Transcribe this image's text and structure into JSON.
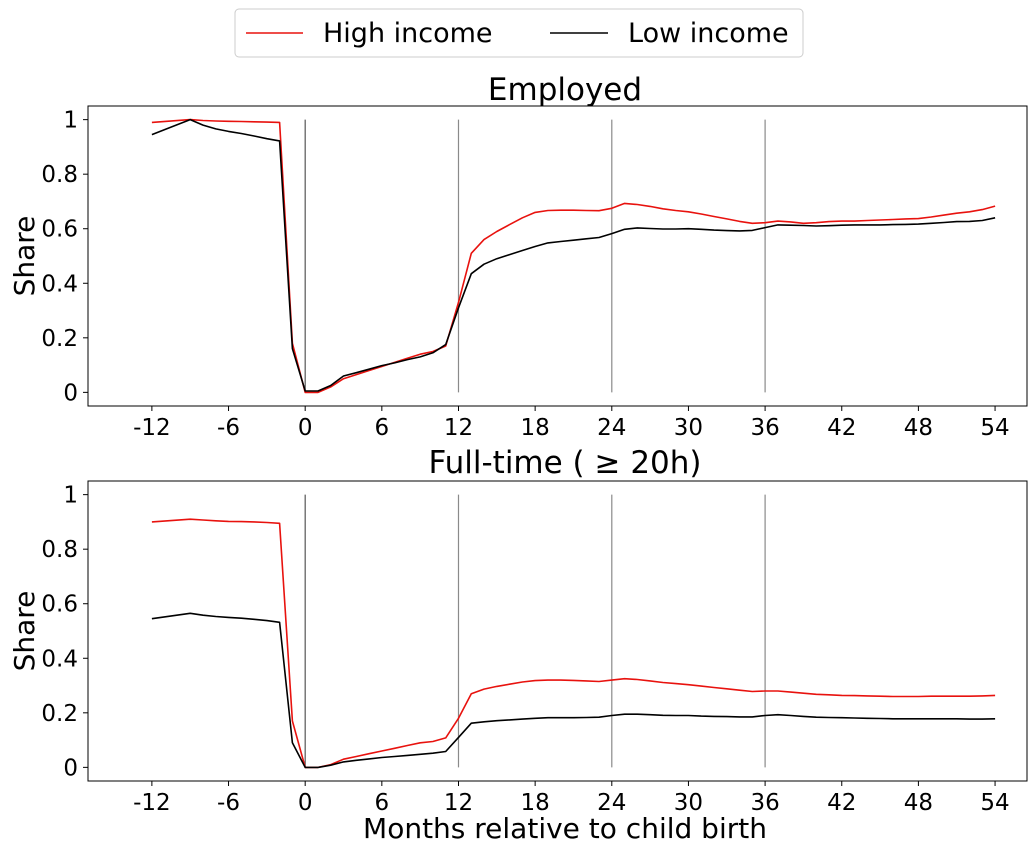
{
  "legend": {
    "placement": "top-center",
    "entries": [
      {
        "label": "High income",
        "color": "#e8120e"
      },
      {
        "label": "Low income",
        "color": "#000000"
      }
    ]
  },
  "chart_data": [
    {
      "type": "line",
      "title": "Employed",
      "xlabel": "",
      "ylabel": "Share",
      "xlim": [
        -17,
        56.5
      ],
      "ylim": [
        -0.05,
        1.05
      ],
      "xticks": [
        -12,
        -6,
        0,
        6,
        12,
        18,
        24,
        30,
        36,
        42,
        48,
        54
      ],
      "xtick_labels": [
        "-12",
        "-6",
        "0",
        "6",
        "12",
        "18",
        "24",
        "30",
        "36",
        "42",
        "48",
        "54"
      ],
      "yticks": [
        0,
        0.2,
        0.4,
        0.6,
        0.8,
        1
      ],
      "ytick_labels": [
        "0",
        "0.2",
        "0.4",
        "0.6",
        "0.8",
        "1"
      ],
      "reference_lines_x": [
        0,
        12,
        24,
        36
      ],
      "grid": false,
      "series": [
        {
          "name": "High income",
          "color": "#e8120e",
          "x": [
            -12,
            -9,
            -8,
            -7,
            -6,
            -5,
            -4,
            -3,
            -2,
            -1,
            0,
            1,
            2,
            3,
            4,
            5,
            6,
            7,
            8,
            9,
            10,
            11,
            12,
            13,
            14,
            15,
            16,
            17,
            18,
            19,
            20,
            21,
            22,
            23,
            24,
            25,
            26,
            27,
            28,
            29,
            30,
            31,
            32,
            33,
            34,
            35,
            36,
            37,
            38,
            39,
            40,
            41,
            42,
            43,
            44,
            45,
            46,
            47,
            48,
            49,
            50,
            51,
            52,
            53,
            54
          ],
          "y": [
            0.99,
            1.0,
            0.997,
            0.995,
            0.994,
            0.993,
            0.992,
            0.991,
            0.99,
            0.18,
            0.0,
            0.0,
            0.02,
            0.05,
            0.065,
            0.08,
            0.095,
            0.11,
            0.125,
            0.14,
            0.15,
            0.17,
            0.33,
            0.51,
            0.56,
            0.59,
            0.615,
            0.64,
            0.66,
            0.667,
            0.668,
            0.668,
            0.667,
            0.666,
            0.675,
            0.693,
            0.689,
            0.682,
            0.673,
            0.667,
            0.662,
            0.654,
            0.645,
            0.636,
            0.627,
            0.62,
            0.622,
            0.628,
            0.625,
            0.62,
            0.622,
            0.626,
            0.628,
            0.628,
            0.63,
            0.632,
            0.634,
            0.636,
            0.637,
            0.643,
            0.65,
            0.657,
            0.662,
            0.67,
            0.683
          ]
        },
        {
          "name": "Low income",
          "color": "#000000",
          "x": [
            -12,
            -9,
            -8,
            -7,
            -6,
            -5,
            -4,
            -3,
            -2,
            -1,
            0,
            1,
            2,
            3,
            4,
            5,
            6,
            7,
            8,
            9,
            10,
            11,
            12,
            13,
            14,
            15,
            16,
            17,
            18,
            19,
            20,
            21,
            22,
            23,
            24,
            25,
            26,
            27,
            28,
            29,
            30,
            31,
            32,
            33,
            34,
            35,
            36,
            37,
            38,
            39,
            40,
            41,
            42,
            43,
            44,
            45,
            46,
            47,
            48,
            49,
            50,
            51,
            52,
            53,
            54
          ],
          "y": [
            0.945,
            1.0,
            0.98,
            0.966,
            0.957,
            0.949,
            0.94,
            0.93,
            0.922,
            0.16,
            0.005,
            0.005,
            0.025,
            0.06,
            0.072,
            0.085,
            0.098,
            0.108,
            0.12,
            0.13,
            0.145,
            0.175,
            0.31,
            0.435,
            0.47,
            0.49,
            0.505,
            0.52,
            0.535,
            0.548,
            0.553,
            0.558,
            0.563,
            0.568,
            0.582,
            0.598,
            0.603,
            0.601,
            0.599,
            0.599,
            0.6,
            0.598,
            0.595,
            0.593,
            0.592,
            0.594,
            0.604,
            0.614,
            0.613,
            0.612,
            0.61,
            0.611,
            0.613,
            0.614,
            0.614,
            0.614,
            0.615,
            0.616,
            0.617,
            0.62,
            0.623,
            0.626,
            0.627,
            0.63,
            0.64
          ]
        }
      ]
    },
    {
      "type": "line",
      "title": "Full-time ( ≥  20h)",
      "xlabel": "Months relative to child birth",
      "ylabel": "Share",
      "xlim": [
        -17,
        56.5
      ],
      "ylim": [
        -0.05,
        1.05
      ],
      "xticks": [
        -12,
        -6,
        0,
        6,
        12,
        18,
        24,
        30,
        36,
        42,
        48,
        54
      ],
      "xtick_labels": [
        "-12",
        "-6",
        "0",
        "6",
        "12",
        "18",
        "24",
        "30",
        "36",
        "42",
        "48",
        "54"
      ],
      "yticks": [
        0,
        0.2,
        0.4,
        0.6,
        0.8,
        1
      ],
      "ytick_labels": [
        "0",
        "0.2",
        "0.4",
        "0.6",
        "0.8",
        "1"
      ],
      "reference_lines_x": [
        0,
        12,
        24,
        36
      ],
      "grid": false,
      "series": [
        {
          "name": "High income",
          "color": "#e8120e",
          "x": [
            -12,
            -9,
            -8,
            -7,
            -6,
            -5,
            -4,
            -3,
            -2,
            -1,
            0,
            1,
            2,
            3,
            4,
            5,
            6,
            7,
            8,
            9,
            10,
            11,
            12,
            13,
            14,
            15,
            16,
            17,
            18,
            19,
            20,
            21,
            22,
            23,
            24,
            25,
            26,
            27,
            28,
            29,
            30,
            31,
            32,
            33,
            34,
            35,
            36,
            37,
            38,
            39,
            40,
            41,
            42,
            43,
            44,
            45,
            46,
            47,
            48,
            49,
            50,
            51,
            52,
            53,
            54
          ],
          "y": [
            0.9,
            0.91,
            0.907,
            0.904,
            0.902,
            0.901,
            0.9,
            0.898,
            0.895,
            0.17,
            0.0,
            0.0,
            0.01,
            0.03,
            0.04,
            0.05,
            0.06,
            0.07,
            0.08,
            0.09,
            0.095,
            0.108,
            0.18,
            0.27,
            0.287,
            0.297,
            0.305,
            0.313,
            0.318,
            0.32,
            0.32,
            0.319,
            0.317,
            0.315,
            0.32,
            0.325,
            0.322,
            0.317,
            0.311,
            0.307,
            0.303,
            0.298,
            0.293,
            0.288,
            0.283,
            0.278,
            0.28,
            0.28,
            0.276,
            0.272,
            0.268,
            0.266,
            0.264,
            0.263,
            0.262,
            0.261,
            0.26,
            0.26,
            0.26,
            0.261,
            0.261,
            0.261,
            0.261,
            0.262,
            0.264
          ]
        },
        {
          "name": "Low income",
          "color": "#000000",
          "x": [
            -12,
            -9,
            -8,
            -7,
            -6,
            -5,
            -4,
            -3,
            -2,
            -1,
            0,
            1,
            2,
            3,
            4,
            5,
            6,
            7,
            8,
            9,
            10,
            11,
            12,
            13,
            14,
            15,
            16,
            17,
            18,
            19,
            20,
            21,
            22,
            23,
            24,
            25,
            26,
            27,
            28,
            29,
            30,
            31,
            32,
            33,
            34,
            35,
            36,
            37,
            38,
            39,
            40,
            41,
            42,
            43,
            44,
            45,
            46,
            47,
            48,
            49,
            50,
            51,
            52,
            53,
            54
          ],
          "y": [
            0.545,
            0.565,
            0.558,
            0.553,
            0.55,
            0.547,
            0.543,
            0.538,
            0.532,
            0.09,
            0.0,
            0.0,
            0.008,
            0.02,
            0.026,
            0.031,
            0.036,
            0.04,
            0.044,
            0.048,
            0.052,
            0.058,
            0.11,
            0.162,
            0.167,
            0.171,
            0.174,
            0.177,
            0.18,
            0.182,
            0.182,
            0.182,
            0.183,
            0.184,
            0.19,
            0.195,
            0.195,
            0.193,
            0.191,
            0.19,
            0.19,
            0.188,
            0.187,
            0.186,
            0.185,
            0.185,
            0.19,
            0.193,
            0.19,
            0.187,
            0.184,
            0.183,
            0.182,
            0.181,
            0.18,
            0.179,
            0.178,
            0.178,
            0.178,
            0.178,
            0.178,
            0.178,
            0.177,
            0.177,
            0.178
          ]
        }
      ]
    }
  ]
}
